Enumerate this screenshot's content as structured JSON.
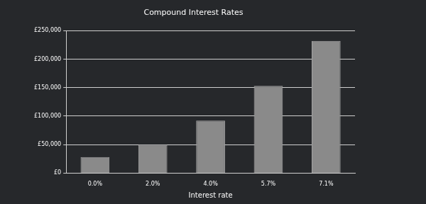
{
  "chart_data": {
    "type": "bar",
    "title": "Compound Interest Rates",
    "x_label": "Interest rate",
    "categories": [
      "0.0%",
      "2.0%",
      "4.0%",
      "5.7%",
      "7.1%"
    ],
    "values": [
      28000,
      50000,
      92000,
      153000,
      232000
    ],
    "color": "#8a8a8a",
    "ylim": [
      0,
      250000
    ],
    "yticks": [
      {
        "value": 0,
        "label": "£0"
      },
      {
        "value": 50000,
        "label": "£50,000"
      },
      {
        "value": 100000,
        "label": "£100,000"
      },
      {
        "value": 150000,
        "label": "£150,000"
      },
      {
        "value": 200000,
        "label": "£200,000"
      },
      {
        "value": 250000,
        "label": "£250,000"
      }
    ],
    "grid": true
  }
}
